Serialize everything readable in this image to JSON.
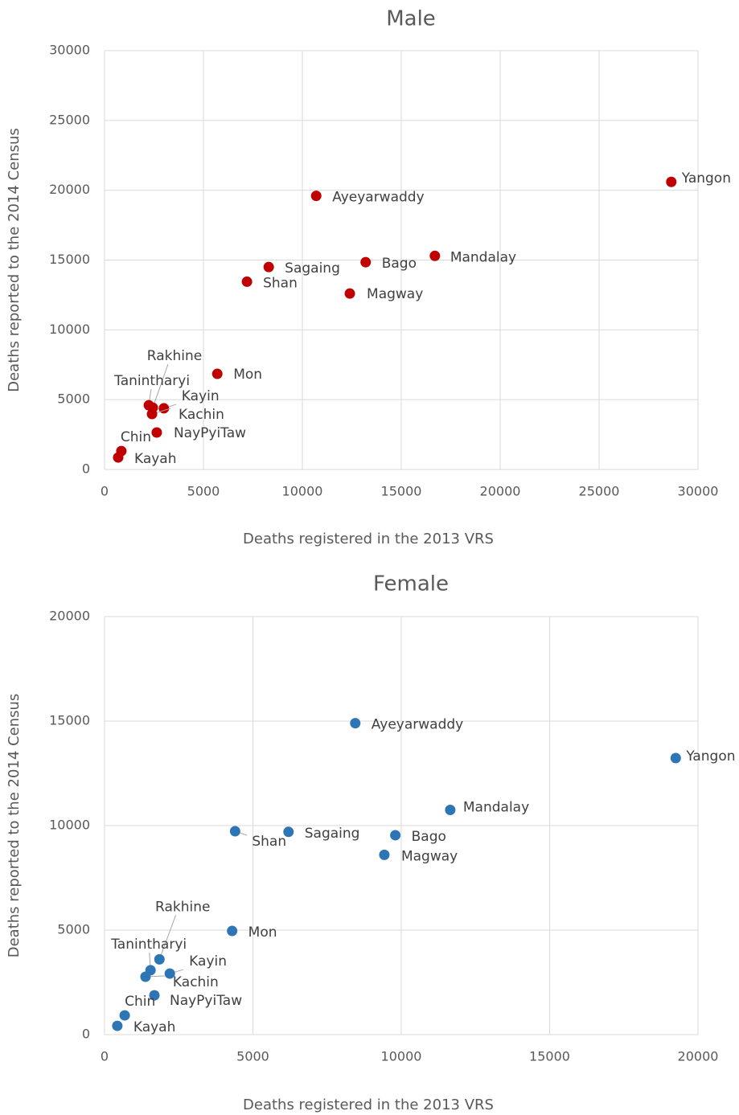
{
  "chart_data": [
    {
      "type": "scatter",
      "title": "Male",
      "xlabel": "Deaths registered in the 2013 VRS",
      "ylabel": "Deaths reported to the 2014 Census",
      "color": "#c00000",
      "labels": [
        "Yangon",
        "Ayeyarwaddy",
        "Mandalay",
        "Bago",
        "Sagaing",
        "Shan",
        "Magway",
        "Mon",
        "Rakhine",
        "Tanintharyi",
        "Kayin",
        "Kachin",
        "NayPyiTaw",
        "Chin",
        "Kayah"
      ],
      "x": [
        28650,
        10700,
        16700,
        13200,
        8300,
        7200,
        12400,
        5700,
        2440,
        2240,
        3000,
        2400,
        2640,
        850,
        690
      ],
      "values": [
        20600,
        19600,
        15300,
        14850,
        14500,
        13450,
        12600,
        6850,
        4430,
        4600,
        4380,
        3970,
        2650,
        1320,
        860
      ],
      "xlim": [
        0,
        30000
      ],
      "xticks": [
        0,
        5000,
        10000,
        15000,
        20000,
        25000,
        30000
      ],
      "ylim": [
        0,
        30000
      ],
      "yticks": [
        0,
        5000,
        10000,
        15000,
        20000,
        25000,
        30000
      ],
      "grid": true
    },
    {
      "type": "scatter",
      "title": "Female",
      "xlabel": "Deaths registered in the 2013 VRS",
      "ylabel": "Deaths reported to the 2014 Census",
      "color": "#2e75b6",
      "labels": [
        "Yangon",
        "Ayeyarwaddy",
        "Mandalay",
        "Shan",
        "Sagaing",
        "Bago",
        "Magway",
        "Mon",
        "Rakhine",
        "Tanintharyi",
        "Kayin",
        "Kachin",
        "NayPyiTaw",
        "Chin",
        "Kayah"
      ],
      "x": [
        19250,
        8450,
        11650,
        4400,
        6200,
        9800,
        9430,
        4300,
        1850,
        1550,
        2200,
        1380,
        1680,
        680,
        430
      ],
      "values": [
        13230,
        14900,
        10750,
        9730,
        9700,
        9540,
        8600,
        4960,
        3600,
        3080,
        2920,
        2770,
        1880,
        920,
        420
      ],
      "xlim": [
        0,
        20000
      ],
      "xticks": [
        0,
        5000,
        10000,
        15000,
        20000
      ],
      "ylim": [
        0,
        20000
      ],
      "yticks": [
        0,
        5000,
        10000,
        15000,
        20000
      ],
      "grid": true
    }
  ]
}
